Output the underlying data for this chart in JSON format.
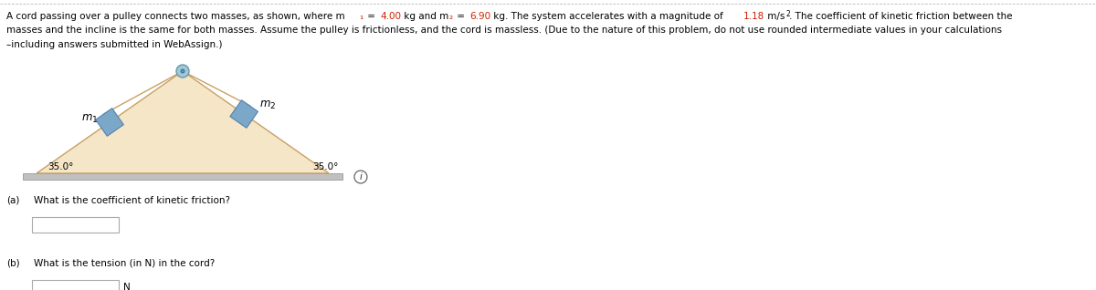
{
  "fig_width": 12.0,
  "fig_height": 3.18,
  "dpi": 100,
  "triangle_color": "#f5e6c8",
  "triangle_edge_color": "#c8a064",
  "mass_color": "#7ba7c9",
  "mass_edge_color": "#4a7aaa",
  "ground_color": "#c0c0c0",
  "ground_edge_color": "#999999",
  "cord_color": "#c8a064",
  "pulley_outer_color": "#a0c8d8",
  "pulley_inner_color": "#7ba7c9",
  "subscript_color": "#cc2200",
  "angle_label": "35.0°",
  "mass_label_1": "m",
  "mass_sub_1": "1",
  "mass_label_2": "m",
  "mass_sub_2": "2",
  "question_a_prefix": "(a)",
  "question_a_text": "  What is the coefficient of kinetic friction?",
  "question_b_prefix": "(b)",
  "question_b_text": "  What is the tension (in N) in the cord?",
  "unit_b": "N",
  "border_color": "#aaaaaa"
}
